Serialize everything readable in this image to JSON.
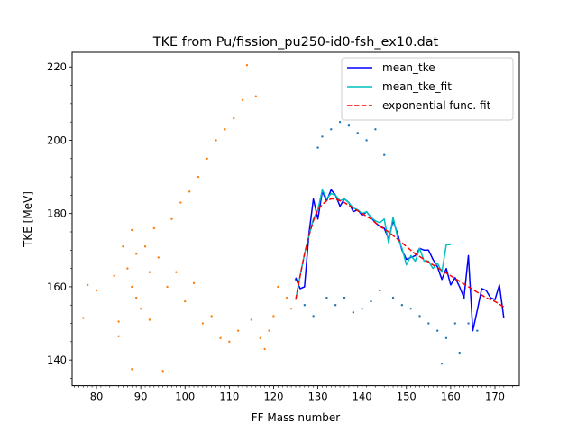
{
  "chart_data": {
    "type": "scatter",
    "title": "TKE from  Pu/fission_pu250-id0-fsh_ex10.dat",
    "xlabel": "FF Mass number",
    "ylabel": "TKE [MeV]",
    "xlim": [
      74.5,
      175.5
    ],
    "ylim": [
      133.0,
      224.0
    ],
    "xticks": [
      80,
      90,
      100,
      110,
      120,
      130,
      140,
      150,
      160,
      170
    ],
    "yticks": [
      140,
      160,
      180,
      200,
      220
    ],
    "grid": false,
    "legend_position": "top-right",
    "colors": {
      "light_scatter": "#ff7f0e",
      "heavy_scatter": "#1f77b4",
      "mean_tke": "#0000ff",
      "mean_tke_fit": "#00bfbf",
      "exp_fit": "#ff0000"
    },
    "series": [
      {
        "name": "mean_tke",
        "style": "solid",
        "x": [
          125,
          126,
          127,
          128,
          129,
          130,
          131,
          132,
          133,
          134,
          135,
          136,
          137,
          138,
          139,
          140,
          141,
          142,
          143,
          144,
          145,
          146,
          147,
          148,
          149,
          150,
          151,
          152,
          153,
          154,
          155,
          156,
          157,
          158,
          159,
          160,
          161,
          162,
          163,
          164,
          165,
          166,
          167,
          168,
          169,
          170,
          171,
          172
        ],
        "y": [
          162.5,
          159.5,
          160.0,
          174.5,
          184.0,
          178.5,
          186.0,
          183.5,
          186.5,
          185.0,
          182.0,
          184.0,
          183.0,
          180.5,
          181.0,
          179.5,
          180.5,
          179.0,
          177.5,
          176.5,
          176.0,
          173.0,
          178.0,
          174.5,
          170.0,
          167.5,
          168.0,
          168.5,
          170.5,
          170.0,
          170.0,
          167.5,
          165.5,
          162.0,
          165.0,
          160.5,
          162.5,
          160.0,
          157.0,
          168.5,
          148.0,
          153.5,
          159.5,
          159.0,
          157.0,
          156.5,
          160.5,
          151.5
        ]
      },
      {
        "name": "mean_tke_fit",
        "style": "solid",
        "x": [
          125,
          126,
          127,
          128,
          129,
          130,
          131,
          132,
          133,
          134,
          135,
          136,
          137,
          138,
          139,
          140,
          141,
          142,
          143,
          144,
          145,
          146,
          147,
          148,
          149,
          150,
          151,
          152,
          153,
          154,
          155,
          156,
          157,
          158,
          159,
          160
        ],
        "y": [
          156.5,
          163.0,
          169.0,
          174.0,
          178.5,
          181.0,
          186.5,
          184.0,
          185.5,
          185.0,
          183.5,
          184.0,
          183.0,
          181.5,
          181.0,
          180.0,
          180.5,
          179.0,
          178.0,
          177.5,
          178.5,
          172.0,
          179.0,
          173.5,
          170.5,
          166.0,
          168.5,
          167.0,
          170.5,
          167.0,
          167.0,
          165.0,
          166.5,
          164.0,
          171.5,
          171.5
        ]
      },
      {
        "name": "exponential func. fit",
        "style": "dashed",
        "x": [
          125,
          126,
          127,
          128,
          129,
          130,
          131,
          132,
          133,
          134,
          135,
          136,
          138,
          140,
          142,
          144,
          146,
          148,
          150,
          152,
          154,
          156,
          158,
          160,
          162,
          164,
          166,
          168,
          170,
          172
        ],
        "y": [
          156.5,
          163.0,
          169.0,
          174.0,
          178.0,
          181.0,
          182.5,
          183.5,
          184.0,
          184.0,
          183.5,
          183.0,
          181.5,
          180.0,
          178.5,
          176.5,
          175.0,
          173.0,
          171.0,
          169.0,
          167.5,
          166.0,
          164.5,
          163.0,
          161.5,
          160.0,
          158.5,
          157.0,
          156.0,
          154.5
        ]
      }
    ],
    "scatter_fragments": [
      {
        "x": 77,
        "y": 151.5
      },
      {
        "x": 78,
        "y": 160.5
      },
      {
        "x": 80,
        "y": 159.0
      },
      {
        "x": 84,
        "y": 163.0
      },
      {
        "x": 85,
        "y": 150.5
      },
      {
        "x": 85,
        "y": 146.5
      },
      {
        "x": 86,
        "y": 171.0
      },
      {
        "x": 87,
        "y": 165.0
      },
      {
        "x": 88,
        "y": 160.0
      },
      {
        "x": 88,
        "y": 175.5
      },
      {
        "x": 88,
        "y": 137.5
      },
      {
        "x": 89,
        "y": 157.0
      },
      {
        "x": 89,
        "y": 169.0
      },
      {
        "x": 90,
        "y": 154.0
      },
      {
        "x": 91,
        "y": 171.0
      },
      {
        "x": 92,
        "y": 164.0
      },
      {
        "x": 92,
        "y": 151.0
      },
      {
        "x": 93,
        "y": 176.0
      },
      {
        "x": 94,
        "y": 168.0
      },
      {
        "x": 95,
        "y": 137.0
      },
      {
        "x": 96,
        "y": 160.0
      },
      {
        "x": 97,
        "y": 178.5
      },
      {
        "x": 98,
        "y": 164.0
      },
      {
        "x": 99,
        "y": 183.0
      },
      {
        "x": 100,
        "y": 156.0
      },
      {
        "x": 101,
        "y": 186.0
      },
      {
        "x": 102,
        "y": 161.0
      },
      {
        "x": 103,
        "y": 190.0
      },
      {
        "x": 104,
        "y": 150.0
      },
      {
        "x": 105,
        "y": 195.0
      },
      {
        "x": 106,
        "y": 152.0
      },
      {
        "x": 107,
        "y": 200.0
      },
      {
        "x": 108,
        "y": 146.0
      },
      {
        "x": 109,
        "y": 203.0
      },
      {
        "x": 110,
        "y": 145.0
      },
      {
        "x": 111,
        "y": 206.0
      },
      {
        "x": 112,
        "y": 148.0
      },
      {
        "x": 113,
        "y": 211.0
      },
      {
        "x": 114,
        "y": 220.5
      },
      {
        "x": 115,
        "y": 151.0
      },
      {
        "x": 116,
        "y": 212.0
      },
      {
        "x": 117,
        "y": 146.0
      },
      {
        "x": 118,
        "y": 143.0
      },
      {
        "x": 119,
        "y": 148.0
      },
      {
        "x": 120,
        "y": 152.0
      },
      {
        "x": 121,
        "y": 160.0
      },
      {
        "x": 123,
        "y": 157.0
      },
      {
        "x": 124,
        "y": 154.0
      },
      {
        "x": 125,
        "y": 162.0
      },
      {
        "x": 127,
        "y": 155.0
      },
      {
        "x": 129,
        "y": 152.0
      },
      {
        "x": 130,
        "y": 198.0
      },
      {
        "x": 131,
        "y": 201.0
      },
      {
        "x": 132,
        "y": 157.0
      },
      {
        "x": 133,
        "y": 203.0
      },
      {
        "x": 134,
        "y": 155.0
      },
      {
        "x": 135,
        "y": 205.0
      },
      {
        "x": 136,
        "y": 157.0
      },
      {
        "x": 137,
        "y": 204.0
      },
      {
        "x": 138,
        "y": 153.0
      },
      {
        "x": 139,
        "y": 202.0
      },
      {
        "x": 140,
        "y": 154.0
      },
      {
        "x": 141,
        "y": 200.0
      },
      {
        "x": 142,
        "y": 156.0
      },
      {
        "x": 143,
        "y": 203.0
      },
      {
        "x": 144,
        "y": 159.0
      },
      {
        "x": 145,
        "y": 196.0
      },
      {
        "x": 147,
        "y": 157.0
      },
      {
        "x": 149,
        "y": 155.0
      },
      {
        "x": 151,
        "y": 154.0
      },
      {
        "x": 153,
        "y": 152.0
      },
      {
        "x": 155,
        "y": 150.0
      },
      {
        "x": 157,
        "y": 148.0
      },
      {
        "x": 158,
        "y": 139.0
      },
      {
        "x": 159,
        "y": 146.0
      },
      {
        "x": 161,
        "y": 150.0
      },
      {
        "x": 162,
        "y": 142.0
      },
      {
        "x": 163,
        "y": 157.0
      },
      {
        "x": 164,
        "y": 150.0
      },
      {
        "x": 166,
        "y": 148.0
      }
    ]
  }
}
